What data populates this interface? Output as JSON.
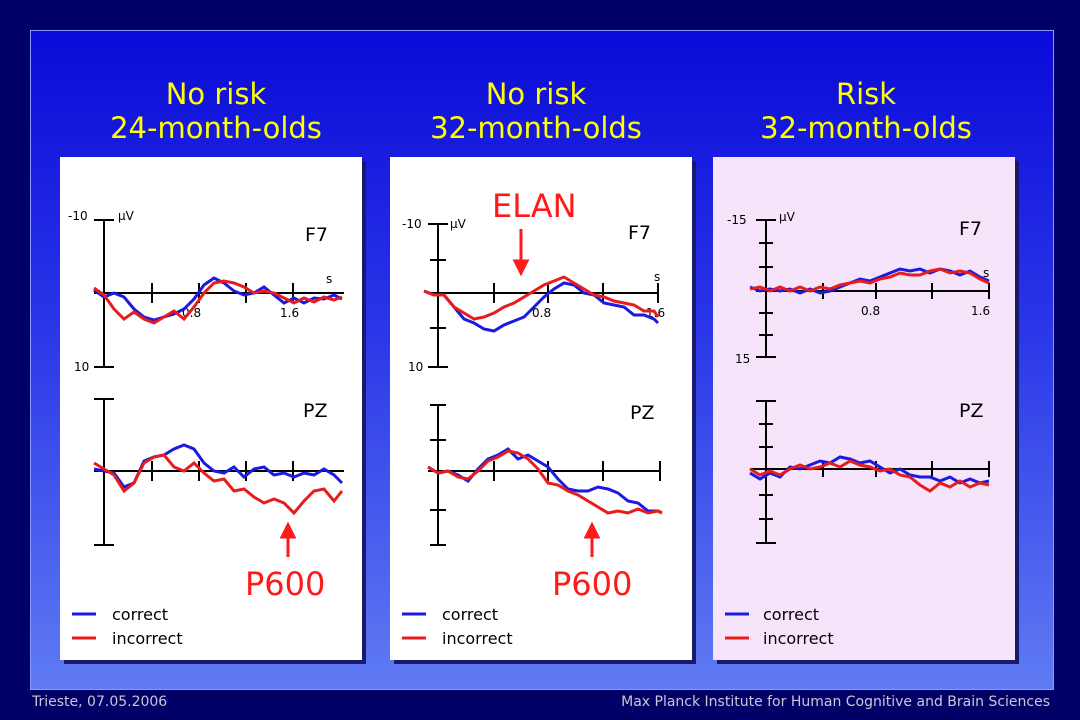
{
  "columns": [
    {
      "title_line1": "No risk",
      "title_line2": "24-month-olds",
      "ymax_label": "-10",
      "ymin_label": "10",
      "yunit": "μV",
      "xunit": "s",
      "xtick1": "0.8",
      "xtick2": "1.6",
      "chan_top": "F7",
      "chan_bottom": "PZ",
      "top_label": "",
      "bottom_label": "P600",
      "legend_correct": "correct",
      "legend_incorrect": "incorrect"
    },
    {
      "title_line1": "No risk",
      "title_line2": "32-month-olds",
      "ymax_label": "-10",
      "ymin_label": "10",
      "yunit": "μV",
      "xunit": "s",
      "xtick1": "0.8",
      "xtick2": "1.6",
      "chan_top": "F7",
      "chan_bottom": "PZ",
      "top_label": "ELAN",
      "bottom_label": "P600",
      "legend_correct": "correct",
      "legend_incorrect": "incorrect"
    },
    {
      "title_line1": "Risk",
      "title_line2": "32-month-olds",
      "ymax_label": "-15",
      "ymin_label": "15",
      "yunit": "μV",
      "xunit": "s",
      "xtick1": "0.8",
      "xtick2": "1.6",
      "chan_top": "F7",
      "chan_bottom": "PZ",
      "top_label": "",
      "bottom_label": "",
      "legend_correct": "correct",
      "legend_incorrect": "incorrect"
    }
  ],
  "footer": {
    "left": "Trieste, 07.05.2006",
    "right": "Max Planck Institute for Human Cognitive and Brain Sciences"
  },
  "colors": {
    "correct": "#1a1ae0",
    "incorrect": "#e81c1c",
    "title": "#ffff00",
    "annotation": "#ff1a1a",
    "panel_default": "#ffffff",
    "panel_risk": "#f6e4fa"
  }
}
